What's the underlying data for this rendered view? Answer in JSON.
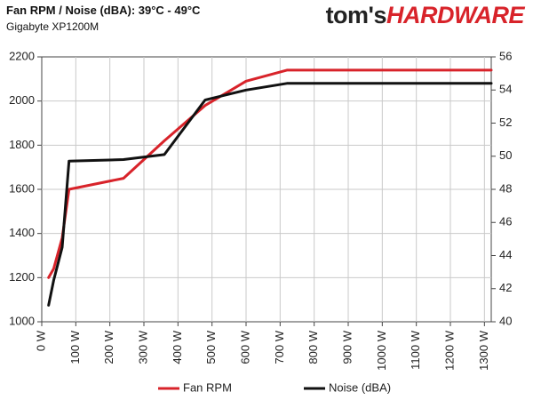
{
  "header": {
    "title": "Fan RPM / Noise (dBA): 39°C - 49°C",
    "subtitle": "Gigabyte XP1200M",
    "logo_part1": "tom's",
    "logo_part2": "HARDWARE"
  },
  "colors": {
    "fan_rpm": "#d8232a",
    "noise": "#111111",
    "grid": "#c9c9c9",
    "axis": "#444444"
  },
  "chart_data": {
    "type": "line",
    "x_categories": [
      "0 W",
      "100 W",
      "200 W",
      "300 W",
      "400 W",
      "500 W",
      "600 W",
      "700 W",
      "800 W",
      "900 W",
      "1000 W",
      "1100 W",
      "1200 W",
      "1300 W"
    ],
    "xlim": [
      0,
      1320
    ],
    "ylim_left": [
      1000,
      2200
    ],
    "ylim_right": [
      40,
      56
    ],
    "yticks_left": [
      "1000",
      "1200",
      "1400",
      "1600",
      "1800",
      "2000",
      "2200"
    ],
    "yticks_right": [
      "40",
      "42",
      "44",
      "46",
      "48",
      "50",
      "52",
      "54",
      "56"
    ],
    "series": [
      {
        "name": "Fan RPM",
        "axis": "left",
        "x": [
          20,
          35,
          60,
          80,
          240,
          360,
          480,
          600,
          720,
          1320
        ],
        "y": [
          1200,
          1240,
          1380,
          1600,
          1650,
          1820,
          1980,
          2090,
          2140,
          2140
        ]
      },
      {
        "name": "Noise (dBA)",
        "axis": "right",
        "x": [
          20,
          35,
          60,
          80,
          240,
          360,
          480,
          600,
          720,
          1320
        ],
        "y": [
          41.0,
          42.5,
          44.5,
          49.7,
          49.8,
          50.1,
          53.4,
          54.0,
          54.4,
          54.4
        ]
      }
    ],
    "grid": true,
    "legend_position": "bottom"
  }
}
